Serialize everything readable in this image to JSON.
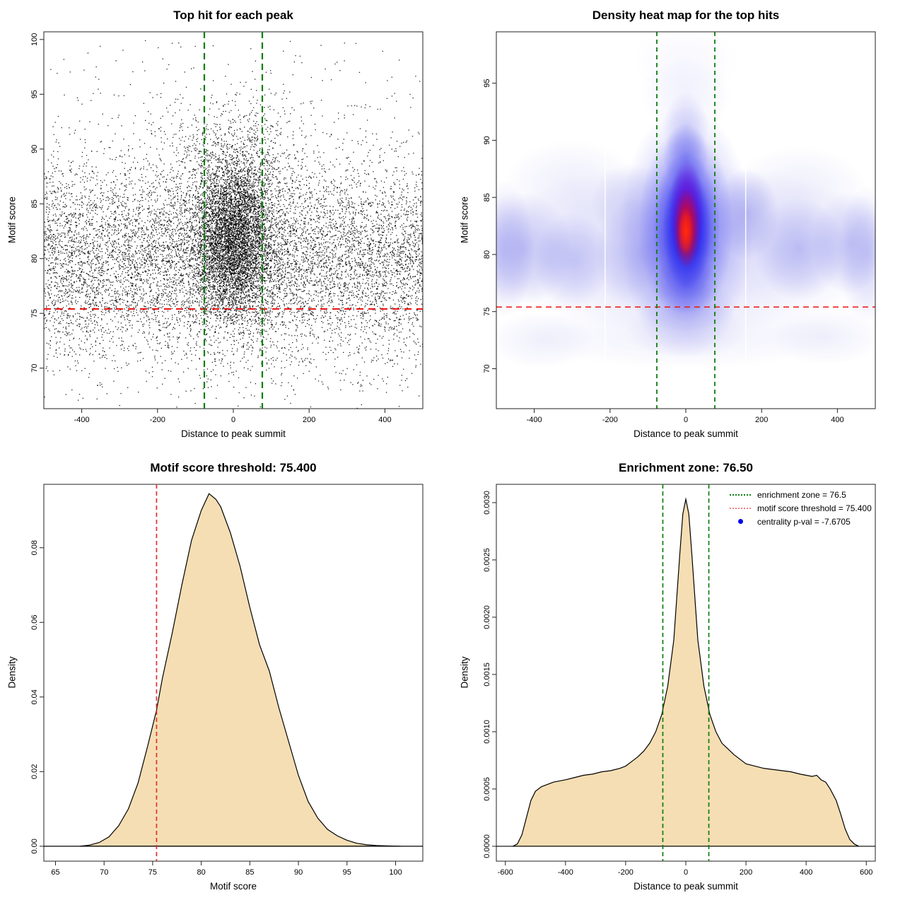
{
  "figure": {
    "background": "#ffffff",
    "axis_color": "#222222"
  },
  "chart_data": [
    {
      "type": "scatter",
      "title": "Top hit for each peak",
      "xlabel": "Distance to peak summit",
      "ylabel": "Motif score",
      "xlim": [
        -500,
        500
      ],
      "ylim": [
        66.3,
        100.7
      ],
      "xticks": [
        -400,
        -200,
        0,
        200,
        400
      ],
      "yticks": [
        70,
        75,
        80,
        85,
        90,
        95,
        100
      ],
      "point_color": "#000000",
      "threshold_line": {
        "y": 75.4,
        "color": "#ee1111"
      },
      "enrichment_lines": {
        "x": [
          -76.5,
          76.5
        ],
        "color": "#0e7d0e"
      },
      "point_cloud": {
        "seed": 123457,
        "clusters": [
          {
            "n": 9000,
            "x": [
              "uniform",
              -500,
              500
            ],
            "y": [
              "normal",
              80,
              4.6
            ]
          },
          {
            "n": 5200,
            "x": [
              "normal",
              0,
              52
            ],
            "y": [
              "normal",
              81.8,
              3.6
            ]
          },
          {
            "n": 900,
            "x": [
              "normal",
              0,
              110
            ],
            "y": [
              "normal",
              88.5,
              3.5
            ]
          },
          {
            "n": 500,
            "x": [
              "uniform",
              -500,
              500
            ],
            "y": [
              "uniform",
              67,
              100
            ]
          }
        ]
      }
    },
    {
      "type": "heatmap",
      "title": "Density heat map for the top hits",
      "xlabel": "Distance to peak summit",
      "ylabel": "Motif score",
      "xlim": [
        -500,
        500
      ],
      "ylim": [
        66.5,
        99.5
      ],
      "xticks": [
        -400,
        -200,
        0,
        200,
        400
      ],
      "yticks": [
        70,
        75,
        80,
        85,
        90,
        95
      ],
      "threshold_line": {
        "y": 75.4,
        "color": "#ee1111"
      },
      "enrichment_lines": {
        "x": [
          -76.5,
          76.5
        ],
        "color": "#0e7d0e"
      },
      "hotspot": {
        "x": 2,
        "y": 82,
        "peak_color": "#ff0000",
        "mid_color": "#2222ee",
        "low_color": "#b4b4f0"
      },
      "white_stripes_x": [
        -213,
        158
      ],
      "blobs": [
        [
          0,
          80.5,
          540,
          7.5,
          "#7878ea",
          0.32
        ],
        [
          -480,
          80.5,
          80,
          6,
          "#6464e4",
          0.28
        ],
        [
          480,
          80,
          80,
          6,
          "#6464e4",
          0.28
        ],
        [
          -430,
          80.5,
          130,
          5,
          "#5656e2",
          0.3
        ],
        [
          -300,
          79.5,
          100,
          4.2,
          "#5656e2",
          0.26
        ],
        [
          -120,
          80,
          120,
          5,
          "#5656e2",
          0.26
        ],
        [
          300,
          80.5,
          120,
          4.5,
          "#5656e2",
          0.3
        ],
        [
          430,
          81,
          100,
          4.5,
          "#5656e2",
          0.26
        ],
        [
          -300,
          86,
          180,
          4,
          "#b4b4f0",
          0.22
        ],
        [
          300,
          85.5,
          180,
          4,
          "#b4b4f0",
          0.22
        ],
        [
          0,
          94,
          120,
          3.5,
          "#b4b4f6",
          0.18
        ],
        [
          0,
          97,
          140,
          3,
          "#d2d2fa",
          0.15
        ],
        [
          0,
          91,
          60,
          3.2,
          "#8484ee",
          0.3
        ],
        [
          0,
          88.5,
          60,
          3,
          "#5050e8",
          0.45
        ],
        [
          0,
          73,
          420,
          3,
          "#c2c2f4",
          0.25
        ],
        [
          -380,
          72.5,
          140,
          2.5,
          "#bcbcf2",
          0.22
        ],
        [
          370,
          72.8,
          150,
          2.5,
          "#bcbcf2",
          0.22
        ],
        [
          0,
          73.5,
          160,
          2.6,
          "#a6a6ee",
          0.28
        ],
        [
          0,
          75.5,
          130,
          2.3,
          "#8a8aee",
          0.3
        ],
        [
          -150,
          84.5,
          100,
          3.5,
          "#9090e8",
          0.25
        ],
        [
          160,
          83.5,
          85,
          4,
          "#6060e2",
          0.35
        ],
        [
          0,
          82,
          175,
          11,
          "#4646ee",
          0.4
        ],
        [
          0,
          82.5,
          125,
          8.5,
          "#3232ee",
          0.55
        ],
        [
          2,
          82.5,
          88,
          6.5,
          "#2222ee",
          0.72
        ],
        [
          3,
          82.2,
          64,
          5.3,
          "#1212ee",
          0.88
        ],
        [
          0,
          77.5,
          85,
          2.7,
          "#3a3aee",
          0.45
        ],
        [
          3,
          83.6,
          46,
          4.7,
          "#7700cc",
          0.85
        ],
        [
          2,
          82.3,
          35,
          3.5,
          "#ee0a00",
          0.95
        ],
        [
          0,
          82,
          21,
          2.1,
          "#ff2a12",
          1.0
        ]
      ]
    },
    {
      "type": "area",
      "title": "Motif score threshold: 75.400",
      "xlabel": "Motif score",
      "ylabel": "Density",
      "xlim": [
        63.8,
        102.8
      ],
      "ylim": [
        -0.004,
        0.097
      ],
      "xticks": [
        65,
        70,
        75,
        80,
        85,
        90,
        95,
        100
      ],
      "yticks": [
        0,
        0.02,
        0.04,
        0.06,
        0.08
      ],
      "ytick_labels": [
        "0.00",
        "0.02",
        "0.04",
        "0.06",
        "0.08"
      ],
      "fill": "#f5deb3",
      "line": "#000000",
      "vlines": [
        {
          "x": 75.4,
          "color": "#e13030"
        }
      ],
      "curve": {
        "x": [
          67.5,
          68.5,
          69.5,
          70.5,
          71.5,
          72.5,
          73.5,
          74.5,
          75.4,
          76,
          77,
          78,
          79,
          80,
          80.8,
          81.5,
          82,
          83,
          84,
          85,
          86,
          87,
          88,
          89,
          90,
          91,
          92,
          93,
          94,
          95,
          96,
          97,
          98,
          99,
          100.5
        ],
        "y": [
          0,
          0.0003,
          0.001,
          0.0025,
          0.0055,
          0.01,
          0.017,
          0.027,
          0.0365,
          0.045,
          0.057,
          0.07,
          0.082,
          0.09,
          0.0945,
          0.093,
          0.091,
          0.084,
          0.075,
          0.064,
          0.054,
          0.047,
          0.037,
          0.028,
          0.019,
          0.012,
          0.0075,
          0.0045,
          0.0028,
          0.0016,
          0.0008,
          0.0004,
          0.0002,
          0.0001,
          0
        ]
      }
    },
    {
      "type": "area",
      "title": "Enrichment zone: 76.50",
      "xlabel": "Distance to peak summit",
      "ylabel": "Density",
      "xlim": [
        -630,
        630
      ],
      "ylim": [
        -0.00013,
        0.00316
      ],
      "xticks": [
        -600,
        -400,
        -200,
        0,
        200,
        400,
        600
      ],
      "yticks": [
        0,
        0.0005,
        0.001,
        0.0015,
        0.002,
        0.0025,
        0.003
      ],
      "ytick_labels": [
        "0.0000",
        "0.0005",
        "0.0010",
        "0.0015",
        "0.0020",
        "0.0025",
        "0.0030"
      ],
      "fill": "#f5deb3",
      "line": "#000000",
      "vlines": [
        {
          "x": -76.5,
          "color": "#0e7d0e"
        },
        {
          "x": 76.5,
          "color": "#0e7d0e"
        }
      ],
      "curve": {
        "x": [
          -575,
          -560,
          -545,
          -530,
          -515,
          -500,
          -480,
          -460,
          -440,
          -420,
          -400,
          -370,
          -340,
          -310,
          -280,
          -250,
          -220,
          -200,
          -180,
          -160,
          -140,
          -120,
          -100,
          -80,
          -60,
          -40,
          -20,
          -10,
          0,
          10,
          20,
          40,
          60,
          80,
          100,
          120,
          140,
          160,
          180,
          200,
          230,
          260,
          290,
          320,
          350,
          380,
          400,
          420,
          435,
          450,
          465,
          480,
          500,
          515,
          530,
          545,
          560,
          575
        ],
        "y": [
          0,
          2e-05,
          0.0001,
          0.00025,
          0.0004,
          0.00048,
          0.00052,
          0.00054,
          0.00056,
          0.00057,
          0.00058,
          0.0006,
          0.00062,
          0.00063,
          0.00065,
          0.00066,
          0.00068,
          0.0007,
          0.00074,
          0.00078,
          0.00083,
          0.0009,
          0.001,
          0.00115,
          0.0014,
          0.0018,
          0.00255,
          0.0029,
          0.00303,
          0.0029,
          0.00255,
          0.0018,
          0.0014,
          0.00115,
          0.001,
          0.0009,
          0.00085,
          0.0008,
          0.00076,
          0.00072,
          0.0007,
          0.00068,
          0.00067,
          0.00066,
          0.00065,
          0.00063,
          0.00062,
          0.00061,
          0.00062,
          0.00058,
          0.00056,
          0.0005,
          0.0004,
          0.00028,
          0.00015,
          6e-05,
          2e-05,
          0
        ]
      },
      "legend": {
        "items": [
          {
            "swatch": "dotted",
            "color": "#0e7d0e",
            "label": "enrichment zone = 76.5"
          },
          {
            "swatch": "dotted",
            "color": "#f08080",
            "label": "motif score threshold = 75.400"
          },
          {
            "swatch": "dot",
            "color": "#0000ee",
            "label": "centrality p-val = -7.6705"
          }
        ]
      }
    }
  ]
}
